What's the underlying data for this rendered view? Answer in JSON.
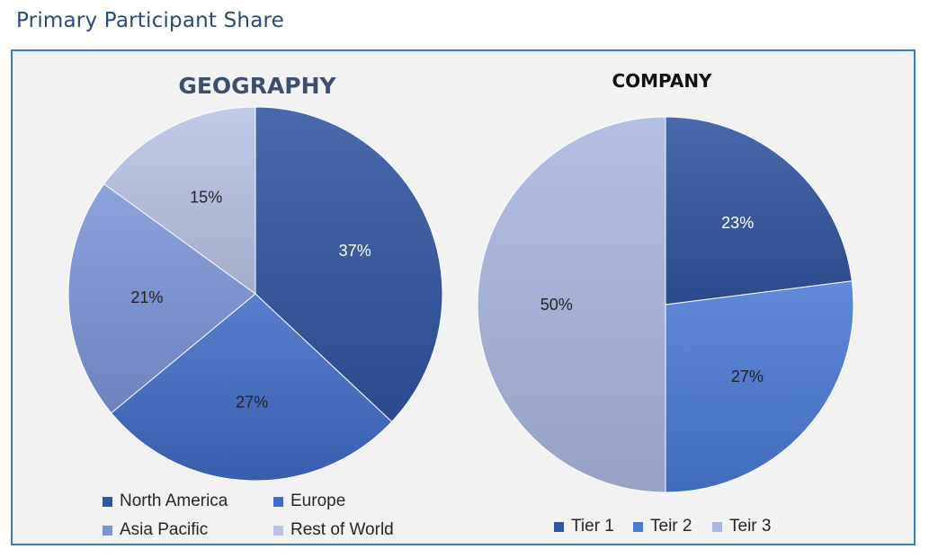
{
  "page": {
    "title": "Primary Participant Share"
  },
  "colors": {
    "panel_border": "#3a7fc0",
    "panel_bg": "#f2f2f2"
  },
  "chart_data": [
    {
      "type": "pie",
      "title": "GEOGRAPHY",
      "categories": [
        "North America",
        "Europe",
        "Asia Pacific",
        "Rest of World"
      ],
      "values": [
        37,
        27,
        21,
        15
      ],
      "labels": [
        "37%",
        "27%",
        "21%",
        "15%"
      ],
      "colors": [
        "#2f55a0",
        "#3f6cc6",
        "#7b95d8",
        "#b9c3e6"
      ],
      "legend": "bottom"
    },
    {
      "type": "pie",
      "title": "COMPANY",
      "categories": [
        "Tier 1",
        "Teir 2",
        "Teir 3"
      ],
      "values": [
        23,
        27,
        50
      ],
      "labels": [
        "23%",
        "27%",
        "50%"
      ],
      "colors": [
        "#2f55a0",
        "#4a7ad4",
        "#a9b7e0"
      ],
      "legend": "bottom"
    }
  ]
}
